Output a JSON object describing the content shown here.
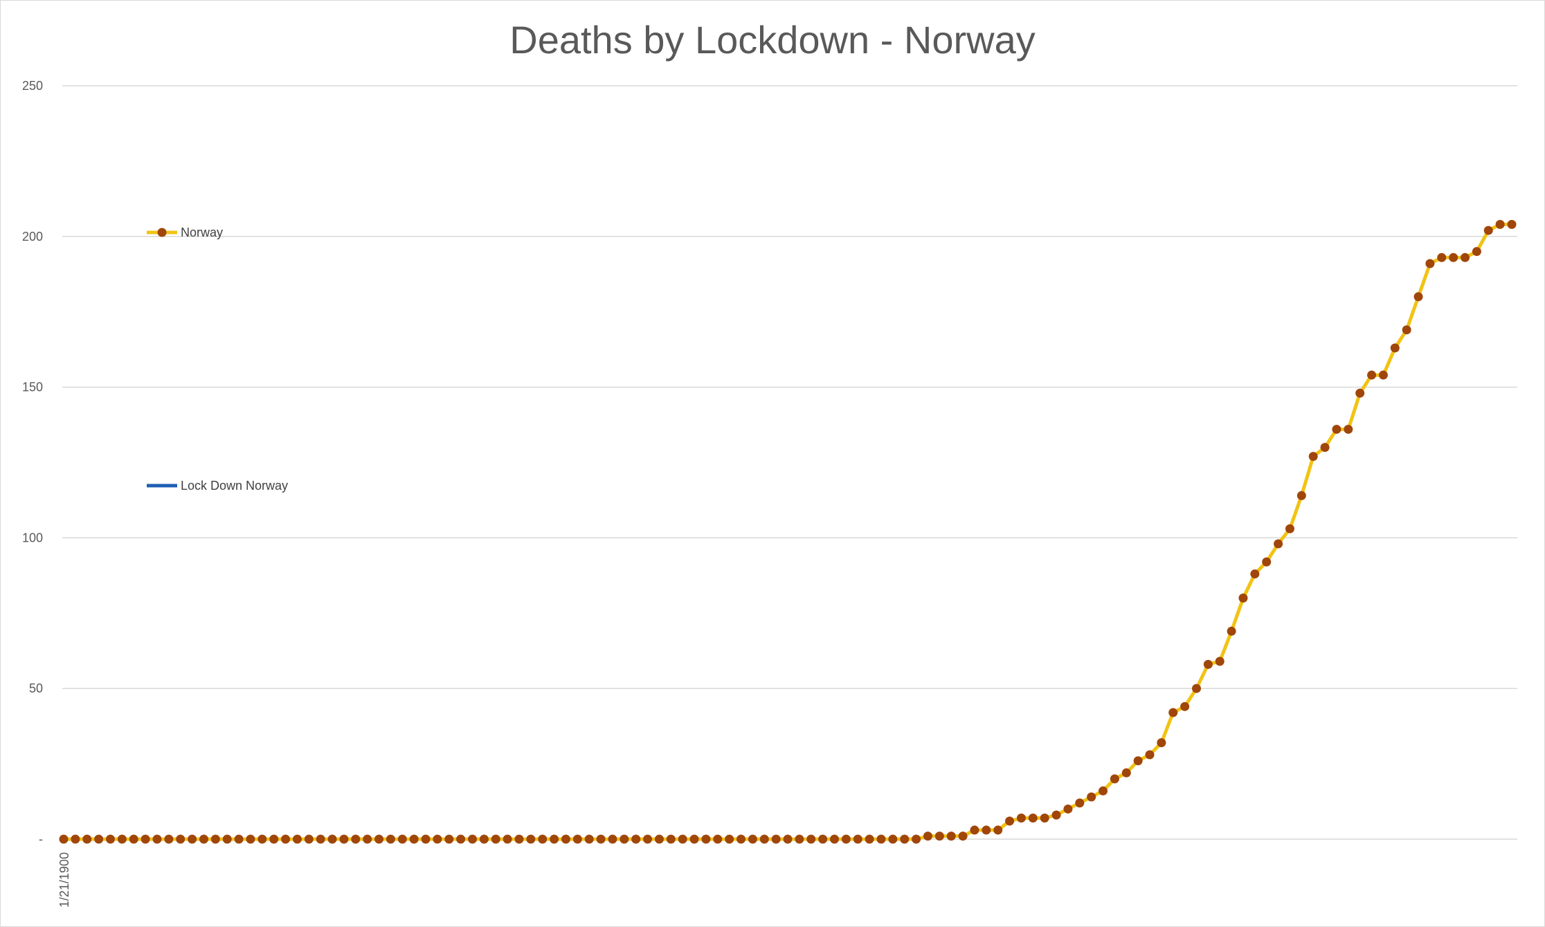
{
  "chart_data": {
    "type": "line",
    "title": "Deaths by Lockdown - Norway",
    "xlabel": "",
    "ylabel": "",
    "ylim": [
      0,
      250
    ],
    "yticks": [
      {
        "value": 0,
        "label": "-"
      },
      {
        "value": 50,
        "label": "50"
      },
      {
        "value": 100,
        "label": "100"
      },
      {
        "value": 150,
        "label": "150"
      },
      {
        "value": 200,
        "label": "200"
      },
      {
        "value": 250,
        "label": "250"
      }
    ],
    "x_tick_labels": [
      "1/21/1900"
    ],
    "grid": "horizontal",
    "legend_position": "left",
    "series": [
      {
        "name": "Norway",
        "color": "#f2c314",
        "marker_color": "#a0460a",
        "marker": "circle",
        "values": [
          0,
          0,
          0,
          0,
          0,
          0,
          0,
          0,
          0,
          0,
          0,
          0,
          0,
          0,
          0,
          0,
          0,
          0,
          0,
          0,
          0,
          0,
          0,
          0,
          0,
          0,
          0,
          0,
          0,
          0,
          0,
          0,
          0,
          0,
          0,
          0,
          0,
          0,
          0,
          0,
          0,
          0,
          0,
          0,
          0,
          0,
          0,
          0,
          0,
          0,
          0,
          0,
          0,
          0,
          0,
          0,
          0,
          0,
          0,
          0,
          0,
          0,
          0,
          0,
          0,
          0,
          0,
          0,
          0,
          0,
          0,
          0,
          0,
          0,
          1,
          1,
          1,
          1,
          3,
          3,
          3,
          6,
          7,
          7,
          7,
          8,
          10,
          12,
          14,
          16,
          20,
          22,
          26,
          28,
          32,
          42,
          44,
          50,
          58,
          59,
          69,
          80,
          88,
          92,
          98,
          103,
          114,
          127,
          130,
          136,
          136,
          148,
          154,
          154,
          163,
          169,
          180,
          191,
          193,
          193,
          193,
          195,
          202,
          204,
          204
        ]
      },
      {
        "name": "Lock Down Norway",
        "color": "#1f5fb4",
        "values": []
      }
    ]
  }
}
